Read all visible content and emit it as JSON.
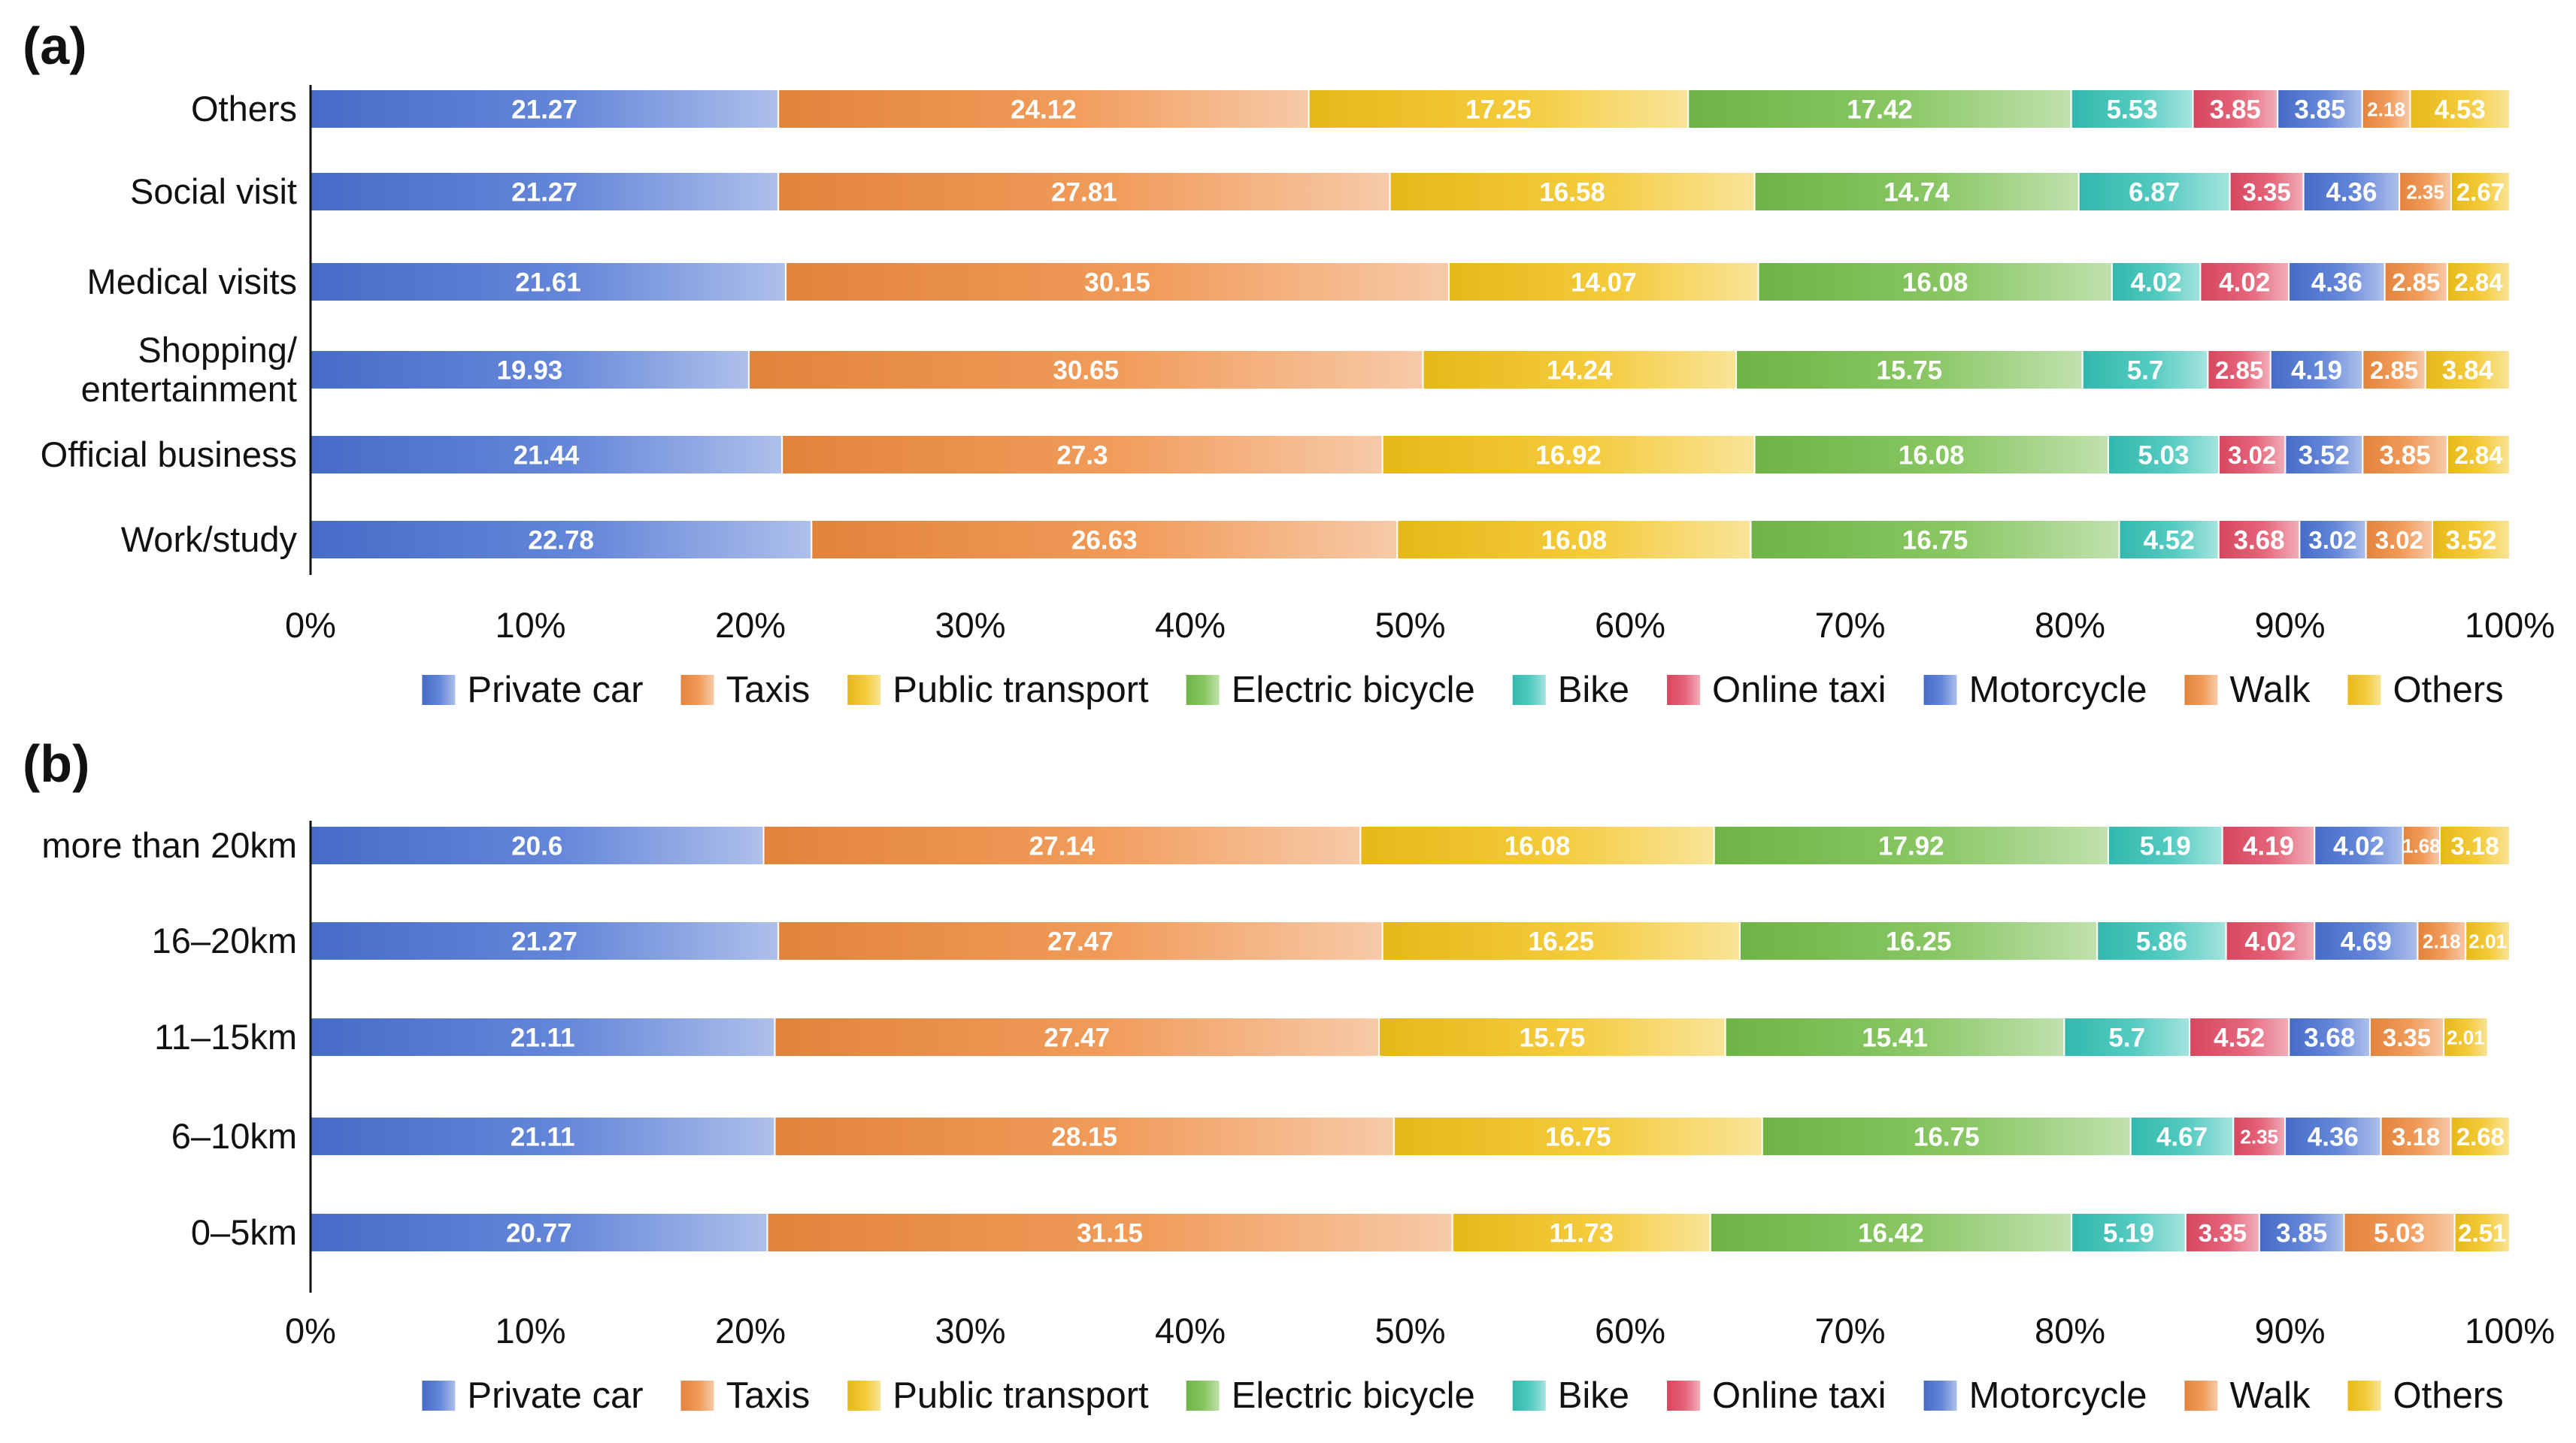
{
  "colors": {
    "Private car": "#4a72d2",
    "Taxis": "#ee8a3e",
    "Public transport": "#f2c21a",
    "Electric bicycle": "#74bd49",
    "Bike": "#36c2b6",
    "Online taxi": "#e04a63",
    "Motorcycle": "#4a72d2",
    "Walk": "#ee8a3e",
    "Others": "#f2c21a"
  },
  "chart_data": [
    {
      "type": "bar",
      "orientation": "horizontal",
      "stacked": true,
      "percent": true,
      "panel_label": "(a)",
      "categories": [
        "Others",
        "Social visit",
        "Medical visits",
        "Shopping/\nentertainment",
        "Official business",
        "Work/study"
      ],
      "series": [
        {
          "name": "Private car",
          "values": [
            21.27,
            21.27,
            21.61,
            19.93,
            21.44,
            22.78
          ]
        },
        {
          "name": "Taxis",
          "values": [
            24.12,
            27.81,
            30.15,
            30.65,
            27.3,
            26.63
          ]
        },
        {
          "name": "Public transport",
          "values": [
            17.25,
            16.58,
            14.07,
            14.24,
            16.92,
            16.08
          ]
        },
        {
          "name": "Electric bicycle",
          "values": [
            17.42,
            14.74,
            16.08,
            15.75,
            16.08,
            16.75
          ]
        },
        {
          "name": "Bike",
          "values": [
            5.53,
            6.87,
            4.02,
            5.7,
            5.03,
            4.52
          ]
        },
        {
          "name": "Online taxi",
          "values": [
            3.85,
            3.35,
            4.02,
            2.85,
            3.02,
            3.68
          ]
        },
        {
          "name": "Motorcycle",
          "values": [
            3.85,
            4.36,
            4.36,
            4.19,
            3.52,
            3.02
          ]
        },
        {
          "name": "Walk",
          "values": [
            2.18,
            2.35,
            2.85,
            2.85,
            3.85,
            3.02
          ]
        },
        {
          "name": "Others",
          "values": [
            4.53,
            2.67,
            2.84,
            3.84,
            2.84,
            3.52
          ]
        }
      ],
      "xticks": [
        "0%",
        "10%",
        "20%",
        "30%",
        "40%",
        "50%",
        "60%",
        "70%",
        "80%",
        "90%",
        "100%"
      ],
      "xlim": [
        0,
        100
      ],
      "legend_position": "bottom",
      "grid": false
    },
    {
      "type": "bar",
      "orientation": "horizontal",
      "stacked": true,
      "percent": true,
      "panel_label": "(b)",
      "categories": [
        "more than 20km",
        "16–20km",
        "11–15km",
        "6–10km",
        "0–5km"
      ],
      "series": [
        {
          "name": "Private car",
          "values": [
            20.6,
            21.27,
            21.11,
            21.11,
            20.77
          ]
        },
        {
          "name": "Taxis",
          "values": [
            27.14,
            27.47,
            27.47,
            28.15,
            31.15
          ]
        },
        {
          "name": "Public transport",
          "values": [
            16.08,
            16.25,
            15.75,
            16.75,
            11.73
          ]
        },
        {
          "name": "Electric bicycle",
          "values": [
            17.92,
            16.25,
            15.41,
            16.75,
            16.42
          ]
        },
        {
          "name": "Bike",
          "values": [
            5.19,
            5.86,
            5.7,
            4.67,
            5.19
          ]
        },
        {
          "name": "Online taxi",
          "values": [
            4.19,
            4.02,
            4.52,
            2.35,
            3.35
          ]
        },
        {
          "name": "Motorcycle",
          "values": [
            4.02,
            4.69,
            3.68,
            4.36,
            3.85
          ]
        },
        {
          "name": "Walk",
          "values": [
            1.68,
            2.18,
            3.35,
            3.18,
            5.03
          ]
        },
        {
          "name": "Others",
          "values": [
            3.18,
            2.01,
            2.01,
            2.68,
            2.51
          ]
        }
      ],
      "xticks": [
        "0%",
        "10%",
        "20%",
        "30%",
        "40%",
        "50%",
        "60%",
        "70%",
        "80%",
        "90%",
        "100%"
      ],
      "xlim": [
        0,
        100
      ],
      "legend_position": "bottom",
      "grid": false
    }
  ]
}
